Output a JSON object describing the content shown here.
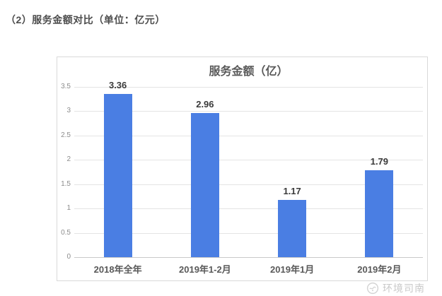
{
  "page": {
    "heading": "（2）服务金额对比（单位：亿元）"
  },
  "watermark": {
    "label": "环境司南",
    "icon": "compass-logo-icon"
  },
  "chart_data": {
    "type": "bar",
    "title": "服务金额（亿）",
    "categories": [
      "2018年全年",
      "2019年1-2月",
      "2019年1月",
      "2019年2月"
    ],
    "values": [
      3.36,
      2.96,
      1.17,
      1.79
    ],
    "data_labels": [
      "3.36",
      "2.96",
      "1.17",
      "1.79"
    ],
    "xlabel": "",
    "ylabel": "",
    "ylim": [
      0,
      3.5
    ],
    "ytick_step": 0.5,
    "ytick_labels": [
      "0",
      "0.5",
      "1",
      "1.5",
      "2",
      "2.5",
      "3",
      "3.5"
    ],
    "grid": true,
    "legend": "none",
    "bar_color": "#4a7ee3",
    "title_color": "#595959"
  }
}
